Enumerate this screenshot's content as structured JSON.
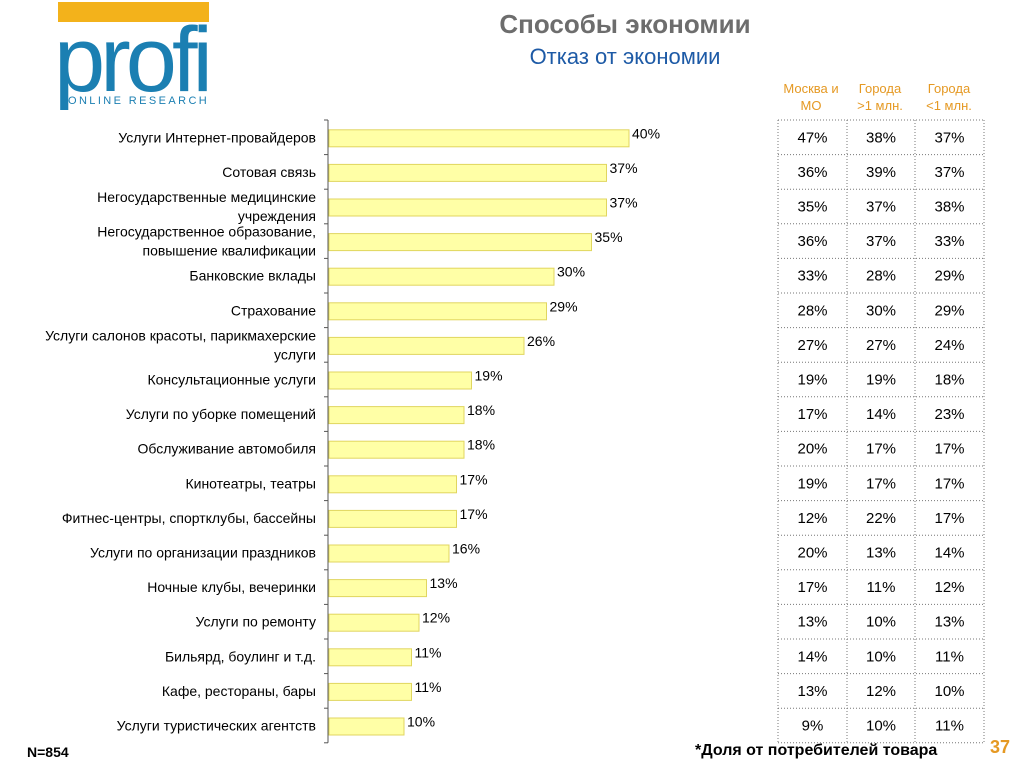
{
  "logo": {
    "word": "profi",
    "sub": "ONLINE RESEARCH"
  },
  "header": {
    "title": "Способы экономии",
    "subtitle": "Отказ от экономии"
  },
  "columns": [
    [
      "Москва и",
      "МО"
    ],
    [
      "Города",
      ">1 млн."
    ],
    [
      "Города",
      "<1 млн."
    ]
  ],
  "footer": {
    "n": "N=854",
    "note": "*Доля  от потребителей товара",
    "page": "37"
  },
  "colors": {
    "bar_fill": "#ffffa6",
    "bar_stroke": "#e0d660",
    "title": "#6d6d6d",
    "subtitle": "#1d5aa6",
    "accent": "#e59923",
    "logo": "#1b7fb2",
    "logo_bar": "#f3b21b"
  },
  "chart_data": {
    "type": "bar",
    "orientation": "horizontal",
    "categories": [
      [
        "Услуги Интернет-провайдеров"
      ],
      [
        "Сотовая связь"
      ],
      [
        "Негосударственные медицинские",
        "учреждения"
      ],
      [
        "Негосударственное образование,",
        "повышение квалификации"
      ],
      [
        "Банковские вклады"
      ],
      [
        "Страхование"
      ],
      [
        "Услуги салонов красоты, парикмахерские",
        "услуги"
      ],
      [
        "Консультационные услуги"
      ],
      [
        "Услуги по уборке помещений"
      ],
      [
        "Обслуживание автомобиля"
      ],
      [
        "Кинотеатры, театры"
      ],
      [
        "Фитнес-центры, спортклубы, бассейны"
      ],
      [
        "Услуги по организации праздников"
      ],
      [
        "Ночные клубы, вечеринки"
      ],
      [
        "Услуги по ремонту"
      ],
      [
        "Бильярд, боулинг и т.д."
      ],
      [
        "Кафе, рестораны, бары"
      ],
      [
        "Услуги туристических агентств"
      ]
    ],
    "values": [
      40,
      37,
      37,
      35,
      30,
      29,
      26,
      19,
      18,
      18,
      17,
      17,
      16,
      13,
      12,
      11,
      11,
      10
    ],
    "value_labels": [
      "40%",
      "37%",
      "37%",
      "35%",
      "30%",
      "29%",
      "26%",
      "19%",
      "18%",
      "18%",
      "17%",
      "17%",
      "16%",
      "13%",
      "12%",
      "11%",
      "11%",
      "10%"
    ],
    "unit": "%",
    "xlim": [
      0,
      100
    ],
    "grid": false,
    "table": [
      [
        "47%",
        "38%",
        "37%"
      ],
      [
        "36%",
        "39%",
        "37%"
      ],
      [
        "35%",
        "37%",
        "38%"
      ],
      [
        "36%",
        "37%",
        "33%"
      ],
      [
        "33%",
        "28%",
        "29%"
      ],
      [
        "28%",
        "30%",
        "29%"
      ],
      [
        "27%",
        "27%",
        "24%"
      ],
      [
        "19%",
        "19%",
        "18%"
      ],
      [
        "17%",
        "14%",
        "23%"
      ],
      [
        "20%",
        "17%",
        "17%"
      ],
      [
        "19%",
        "17%",
        "17%"
      ],
      [
        "12%",
        "22%",
        "17%"
      ],
      [
        "20%",
        "13%",
        "14%"
      ],
      [
        "17%",
        "11%",
        "12%"
      ],
      [
        "13%",
        "10%",
        "13%"
      ],
      [
        "14%",
        "10%",
        "11%"
      ],
      [
        "13%",
        "12%",
        "10%"
      ],
      [
        "9%",
        "10%",
        "11%"
      ]
    ]
  }
}
